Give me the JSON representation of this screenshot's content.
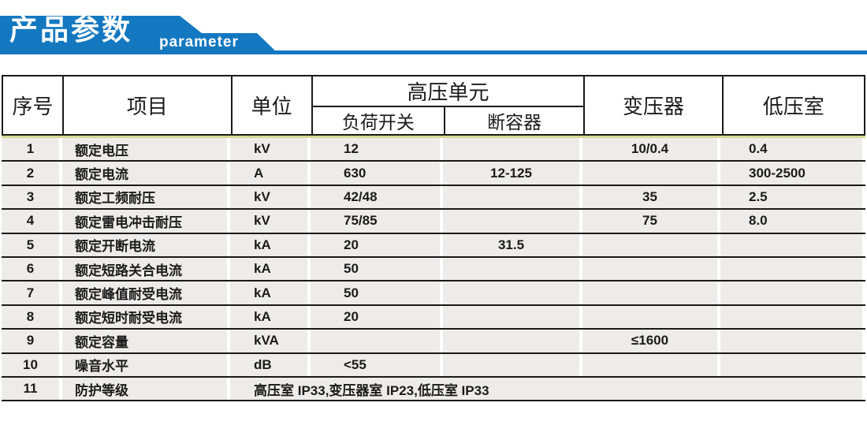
{
  "banner": {
    "title": "产品参数",
    "subtitle": "parameter",
    "color": "#1478c0"
  },
  "colors": {
    "row_background": "#edecea",
    "accent_line": "#d5d795",
    "border": "#1a1a1a"
  },
  "table": {
    "header": {
      "col_no": "序号",
      "col_item": "项目",
      "col_unit": "单位",
      "col_hv_unit": "高压单元",
      "col_load_switch": "负荷开关",
      "col_fuse": "断容器",
      "col_transformer": "变压器",
      "col_lv_room": "低压室"
    },
    "rows": [
      {
        "no": "1",
        "item": "额定电压",
        "unit": "kV",
        "load_switch": "12",
        "fuse": "",
        "transformer": "10/0.4",
        "lv": "0.4"
      },
      {
        "no": "2",
        "item": "额定电流",
        "unit": "A",
        "load_switch": "630",
        "fuse": "12-125",
        "transformer": "",
        "lv": "300-2500"
      },
      {
        "no": "3",
        "item": "额定工频耐压",
        "unit": "kV",
        "load_switch": "42/48",
        "fuse": "",
        "transformer": "35",
        "lv": "2.5"
      },
      {
        "no": "4",
        "item": "额定雷电冲击耐压",
        "unit": "kV",
        "load_switch": "75/85",
        "fuse": "",
        "transformer": "75",
        "lv": "8.0"
      },
      {
        "no": "5",
        "item": "额定开断电流",
        "unit": "kA",
        "load_switch": "20",
        "fuse": "31.5",
        "transformer": "",
        "lv": ""
      },
      {
        "no": "6",
        "item": "额定短路关合电流",
        "unit": "kA",
        "load_switch": "50",
        "fuse": "",
        "transformer": "",
        "lv": ""
      },
      {
        "no": "7",
        "item": "额定峰值耐受电流",
        "unit": "kA",
        "load_switch": "50",
        "fuse": "",
        "transformer": "",
        "lv": ""
      },
      {
        "no": "8",
        "item": "额定短时耐受电流",
        "unit": "kA",
        "load_switch": "20",
        "fuse": "",
        "transformer": "",
        "lv": ""
      },
      {
        "no": "9",
        "item": "额定容量",
        "unit": "kVA",
        "load_switch": "",
        "fuse": "",
        "transformer": "≤1600",
        "lv": ""
      },
      {
        "no": "10",
        "item": "噪音水平",
        "unit": "dB",
        "load_switch": "<55",
        "fuse": "",
        "transformer": "",
        "lv": ""
      },
      {
        "no": "11",
        "item": "防护等级",
        "span_value": "高压室 IP33,变压器室 IP23,低压室 IP33"
      }
    ]
  }
}
